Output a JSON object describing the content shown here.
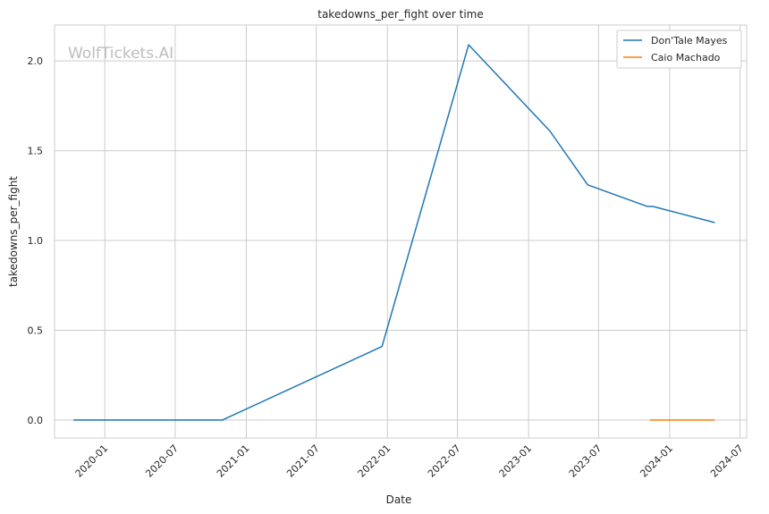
{
  "watermark": "WolfTickets.AI",
  "chart_data": {
    "type": "line",
    "title": "takedowns_per_fight over time",
    "xlabel": "Date",
    "ylabel": "takedowns_per_fight",
    "xlim": [
      "2019-08-24",
      "2024-07-18"
    ],
    "ylim": [
      -0.1,
      2.2
    ],
    "x_ticks": [
      "2020-01",
      "2020-07",
      "2021-01",
      "2021-07",
      "2022-01",
      "2022-07",
      "2023-01",
      "2023-07",
      "2024-01",
      "2024-07"
    ],
    "y_ticks": [
      "0.0",
      "0.5",
      "1.0",
      "1.5",
      "2.0"
    ],
    "y_tick_values": [
      0.0,
      0.5,
      1.0,
      1.5,
      2.0
    ],
    "grid": true,
    "legend_position": "top-right",
    "series": [
      {
        "name": "Don'Tale Mayes",
        "color": "#1f77b4",
        "points": [
          {
            "x": "2019-10-12",
            "y": 0.0
          },
          {
            "x": "2020-10-31",
            "y": 0.0
          },
          {
            "x": "2021-12-18",
            "y": 0.41
          },
          {
            "x": "2022-07-30",
            "y": 2.09
          },
          {
            "x": "2023-02-25",
            "y": 1.61
          },
          {
            "x": "2023-06-03",
            "y": 1.31
          },
          {
            "x": "2023-11-04",
            "y": 1.19
          },
          {
            "x": "2023-11-18",
            "y": 1.19
          },
          {
            "x": "2024-04-27",
            "y": 1.1
          }
        ]
      },
      {
        "name": "Caio Machado",
        "color": "#ff7f0e",
        "points": [
          {
            "x": "2023-11-11",
            "y": 0.0
          },
          {
            "x": "2024-04-27",
            "y": 0.0
          }
        ]
      }
    ]
  }
}
